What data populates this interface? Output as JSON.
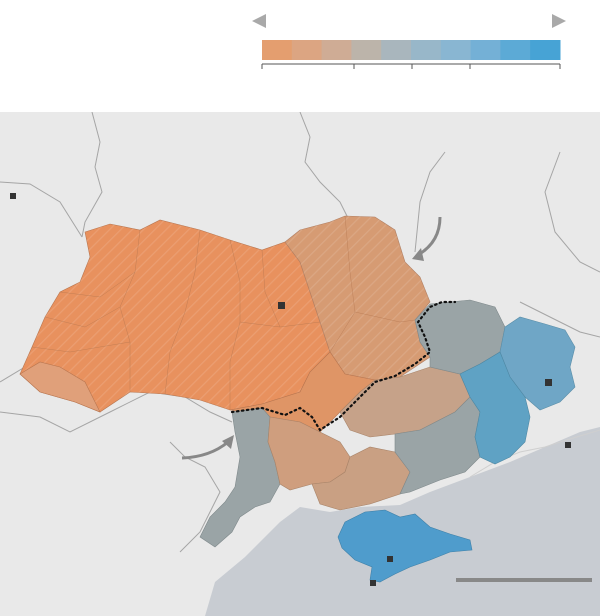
{
  "legend": {
    "left_arrow_icon": "triangle-left",
    "right_arrow_icon": "triangle-right",
    "scale_colors": [
      "#e49e6f",
      "#dca582",
      "#cfac95",
      "#bcb4aa",
      "#a9b6bd",
      "#98b7c9",
      "#89b6d2",
      "#74b0d6",
      "#5caad6",
      "#47a3d5"
    ],
    "tick_count": 5
  },
  "map": {
    "colors": {
      "sea": "#c8ccd2",
      "land": "#e9e9e9",
      "border": "#a5a5a5",
      "west_orange": "#e8915e",
      "central_orange": "#df9566",
      "north_east_orange": "#d69b73",
      "south_tan": "#cf9e7e",
      "grey_blue": "#9aa4a6",
      "east_blue": "#5fa2c4",
      "crimea_blue": "#4f9ccc",
      "hatch": "#ffffff",
      "division_line": "#111111",
      "arrow": "#888888",
      "city_marker": "#333333",
      "scale_bar": "#888888"
    },
    "city_marker_icon": "square-marker",
    "arrow_icon": "curved-arrow"
  }
}
